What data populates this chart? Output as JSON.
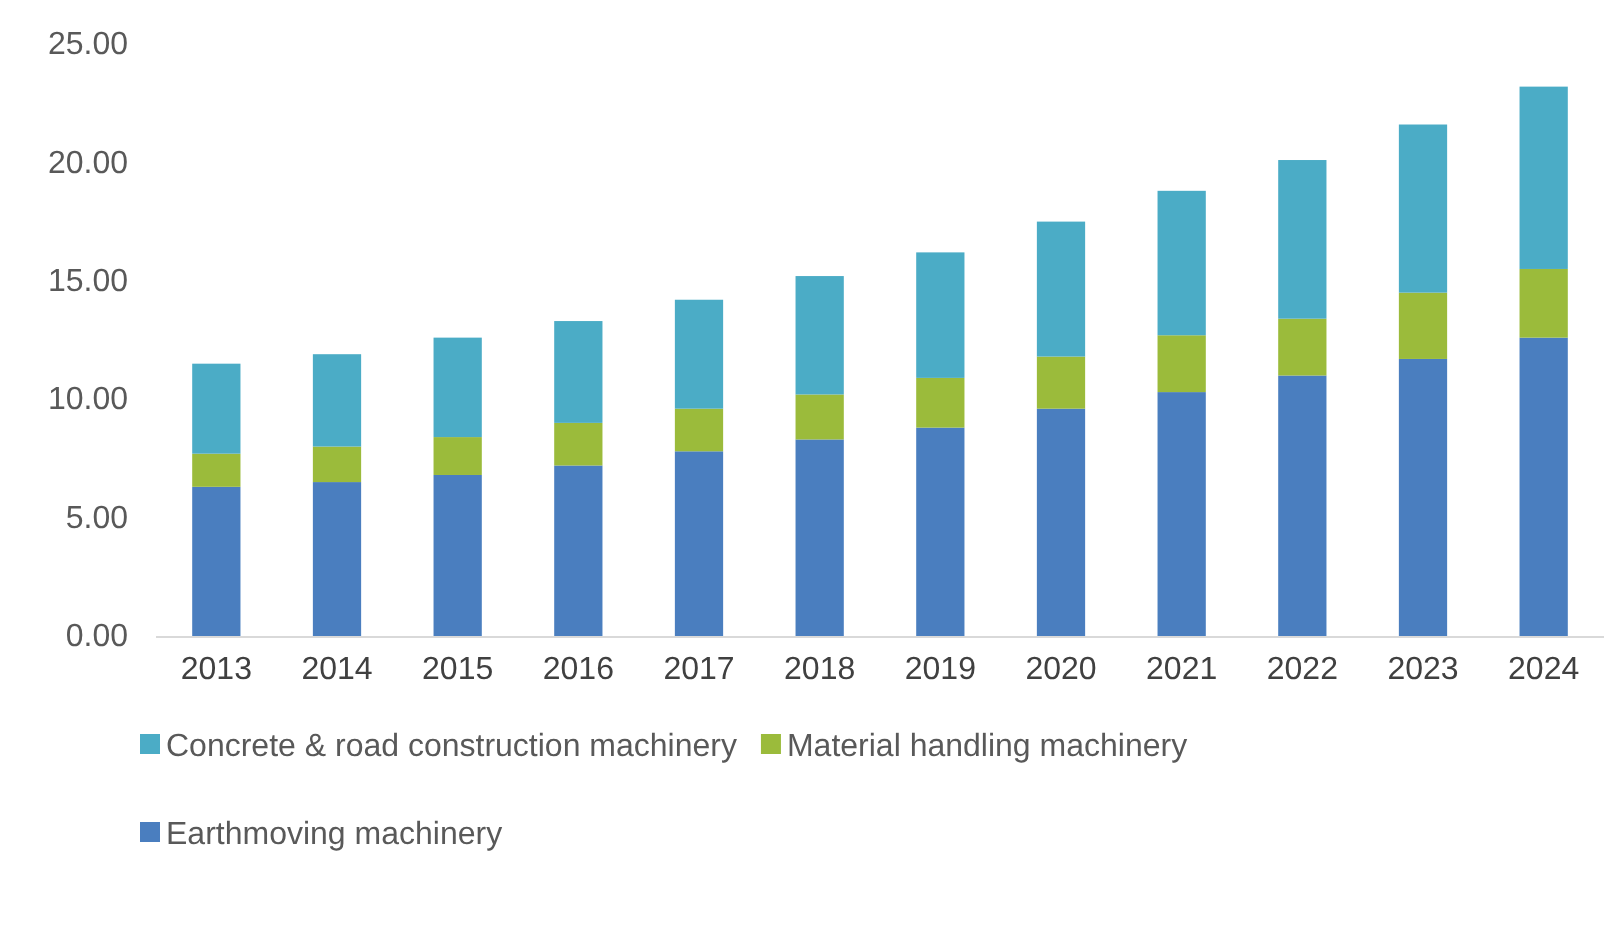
{
  "chart_data": {
    "type": "bar",
    "stacked": true,
    "categories": [
      "2013",
      "2014",
      "2015",
      "2016",
      "2017",
      "2018",
      "2019",
      "2020",
      "2021",
      "2022",
      "2023",
      "2024"
    ],
    "series": [
      {
        "name": "Earthmoving machinery",
        "color": "#4a7ebf",
        "values": [
          6.3,
          6.5,
          6.8,
          7.2,
          7.8,
          8.3,
          8.8,
          9.6,
          10.3,
          11.0,
          11.7,
          12.6
        ]
      },
      {
        "name": "Material handling machinery",
        "color": "#9bbb3b",
        "values": [
          1.4,
          1.5,
          1.6,
          1.8,
          1.8,
          1.9,
          2.1,
          2.2,
          2.4,
          2.4,
          2.8,
          2.9
        ]
      },
      {
        "name": "Concrete & road construction machinery",
        "color": "#4bacc6",
        "values": [
          3.8,
          3.9,
          4.2,
          4.3,
          4.6,
          5.0,
          5.3,
          5.7,
          6.1,
          6.7,
          7.1,
          7.7
        ]
      }
    ],
    "ylim": [
      0,
      25
    ],
    "yticks": [
      {
        "value": 0,
        "label": "0.00"
      },
      {
        "value": 5,
        "label": "5.00"
      },
      {
        "value": 10,
        "label": "10.00"
      },
      {
        "value": 15,
        "label": "15.00"
      },
      {
        "value": 20,
        "label": "20.00"
      },
      {
        "value": 25,
        "label": "25.00"
      }
    ],
    "grid": false,
    "legend": "bottom"
  }
}
